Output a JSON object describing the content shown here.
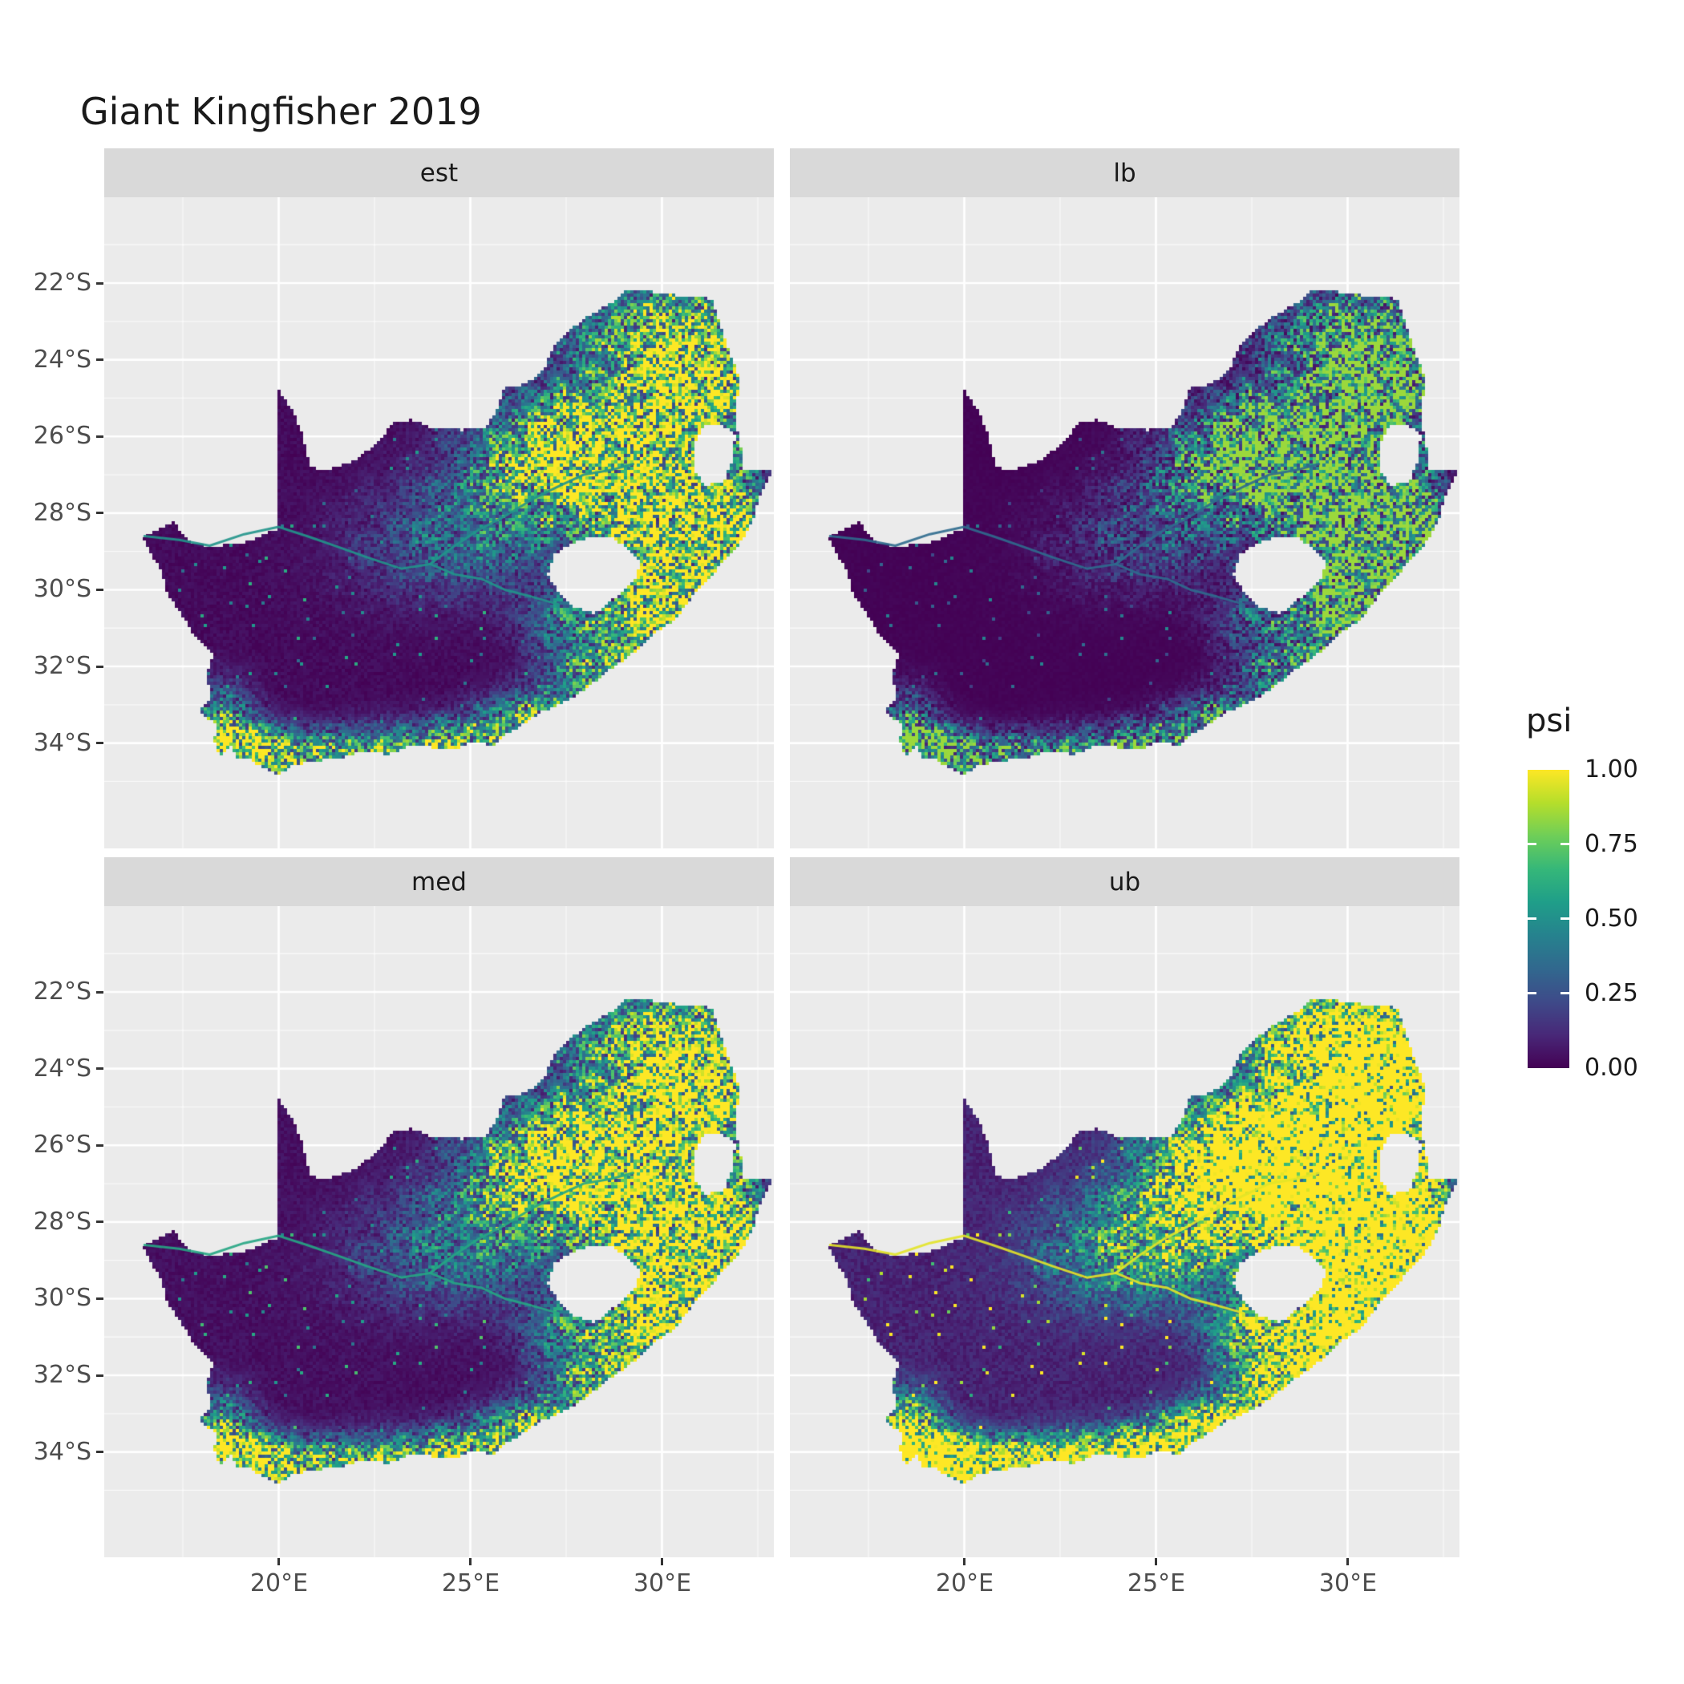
{
  "title": "Giant Kingfisher 2019",
  "facets": [
    {
      "key": "est",
      "label": "est"
    },
    {
      "key": "lb",
      "label": "lb"
    },
    {
      "key": "med",
      "label": "med"
    },
    {
      "key": "ub",
      "label": "ub"
    }
  ],
  "axes": {
    "y_ticks": [
      "22°S",
      "24°S",
      "26°S",
      "28°S",
      "30°S",
      "32°S",
      "34°S"
    ],
    "x_ticks": [
      "20°E",
      "25°E",
      "30°E"
    ]
  },
  "legend": {
    "title": "psi",
    "labels": [
      "1.00",
      "0.75",
      "0.50",
      "0.25",
      "0.00"
    ]
  },
  "colors": {
    "panel_bg": "#EBEBEB",
    "strip_bg": "#D9D9D9",
    "grid": "#FFFFFF",
    "axis_text": "#4D4D4D",
    "text": "#1A1A1A",
    "viridis_low": "#440154",
    "viridis_high": "#FDE725"
  },
  "chart_data": {
    "type": "heatmap",
    "subtype": "faceted raster occupancy map of South Africa (pentad grid)",
    "title": "Giant Kingfisher 2019",
    "facets": [
      "est",
      "lb",
      "med",
      "ub"
    ],
    "variable": "psi",
    "scale": {
      "name": "viridis",
      "limits": [
        0,
        1
      ],
      "breaks": [
        0.0,
        0.25,
        0.5,
        0.75,
        1.0
      ],
      "legend_position": "right"
    },
    "x": {
      "label": "",
      "ticks": [
        "20°E",
        "25°E",
        "30°E"
      ],
      "approx_range_deg_east": [
        15.5,
        33.0
      ]
    },
    "y": {
      "label": "",
      "ticks": [
        "22°S",
        "24°S",
        "26°S",
        "28°S",
        "30°S",
        "32°S",
        "34°S"
      ],
      "approx_range_deg_south": [
        19.8,
        36.8
      ]
    },
    "grid": "white major and minor gridlines on grey panels",
    "no_data_holes": [
      "Lesotho",
      "Eswatini"
    ],
    "pattern_summary": "High psi (yellow/green) in the northeastern lowveld and escarpment (Limpopo/Mpumalanga), along the KwaZulu-Natal and Eastern Cape coasts, around Lesotho's foothills and along the southern/southwestern Cape coast; thin high-psi lines follow the Orange and Vaal rivers; very low psi (dark purple) over the arid western and central interior. Facet brightness: lb darkest, est and med intermediate, ub brightest."
  }
}
